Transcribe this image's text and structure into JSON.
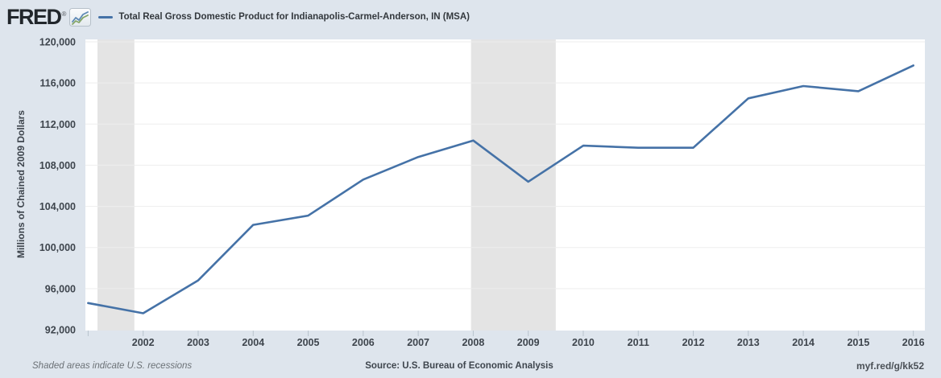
{
  "header": {
    "logo_text": "FRED",
    "registered_mark": "®",
    "series_title": "Total Real Gross Domestic Product for Indianapolis-Carmel-Anderson, IN (MSA)"
  },
  "chart_data": {
    "type": "line",
    "title": "Total Real Gross Domestic Product for Indianapolis-Carmel-Anderson, IN (MSA)",
    "xlabel": "",
    "ylabel": "Millions of Chained 2009 Dollars",
    "x": [
      2001,
      2002,
      2003,
      2004,
      2005,
      2006,
      2007,
      2008,
      2009,
      2010,
      2011,
      2012,
      2013,
      2014,
      2015,
      2016
    ],
    "values": [
      94600,
      93600,
      96800,
      102200,
      103100,
      106600,
      108800,
      110400,
      106400,
      109900,
      109700,
      109700,
      114500,
      115700,
      115200,
      117700
    ],
    "ylim": [
      92000,
      120000
    ],
    "xlim": [
      2000.95,
      2016.21
    ],
    "y_ticks": [
      92000,
      96000,
      100000,
      104000,
      108000,
      112000,
      116000,
      120000
    ],
    "x_ticks": [
      2001,
      2002,
      2003,
      2004,
      2005,
      2006,
      2007,
      2008,
      2009,
      2010,
      2011,
      2012,
      2013,
      2014,
      2015,
      2016
    ],
    "x_ticks_labeled": [
      2002,
      2003,
      2004,
      2005,
      2006,
      2007,
      2008,
      2009,
      2010,
      2011,
      2012,
      2013,
      2014,
      2015,
      2016
    ],
    "grid": "horizontal",
    "legend_position": "top-left",
    "recession_bands": [
      {
        "start": 2001.17,
        "end": 2001.84
      },
      {
        "start": 2007.96,
        "end": 2009.5
      }
    ],
    "line_color": "#4572a7",
    "recession_color": "#e4e4e4",
    "plot_bg": "#ffffff",
    "page_bg": "#dee5ed",
    "grid_color": "#ededed",
    "tick_color": "#b9c3cd"
  },
  "footer": {
    "note": "Shaded areas indicate U.S. recessions",
    "source": "Source: U.S. Bureau of Economic Analysis",
    "link": "myf.red/g/kk52"
  }
}
